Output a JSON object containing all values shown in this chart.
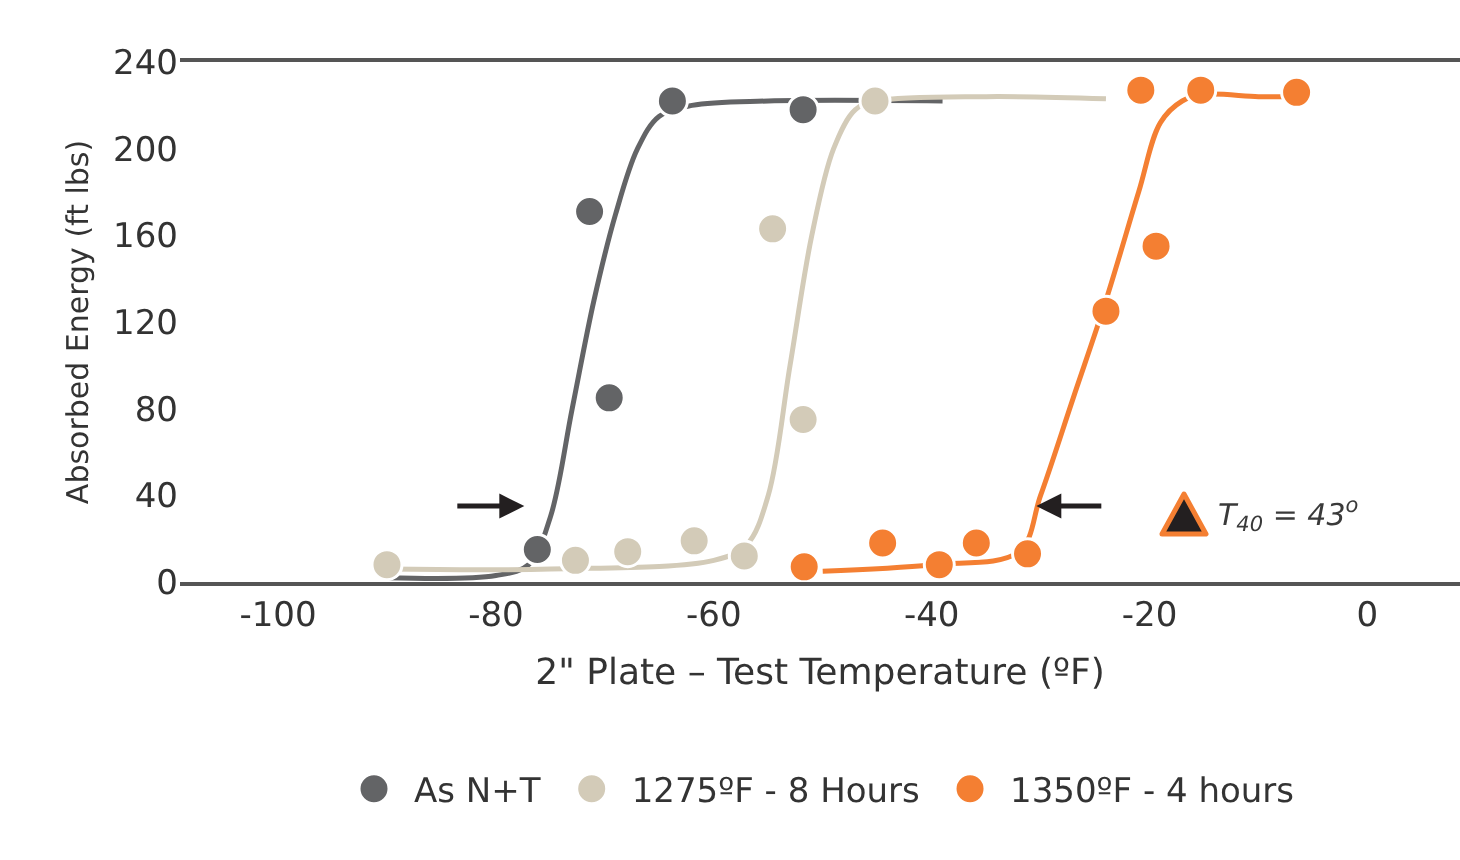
{
  "chart_data": {
    "type": "scatter",
    "xlabel": "2\" Plate – Test Temperature (ºF)",
    "ylabel": "Absorbed Energy (ft lbs)",
    "xlim": [
      -109,
      8.5
    ],
    "xticks": [
      -100,
      -80,
      -60,
      -40,
      -20,
      0
    ],
    "ylim": [
      0,
      240
    ],
    "yticks": [
      0,
      40,
      80,
      120,
      160,
      200,
      240
    ],
    "grid": false,
    "legend": "bottom",
    "marker": "circle",
    "series": [
      {
        "name": "As N+T",
        "color": "#636466",
        "x": [
          -76.2,
          -71.4,
          -69.6,
          -63.8,
          -51.8
        ],
        "values": [
          15,
          171,
          85,
          222,
          218
        ]
      },
      {
        "name": "1275ºF - 8 Hours",
        "color": "#d3cbb8",
        "x": [
          -90,
          -72.7,
          -67.9,
          -61.8,
          -57.2,
          -54.6,
          -51.8,
          -45.2
        ],
        "values": [
          8,
          10,
          14,
          19,
          12,
          163,
          75,
          222
        ]
      },
      {
        "name": "1350ºF - 4 hours",
        "color": "#f47f32",
        "x": [
          -51.7,
          -44.5,
          -39.3,
          -35.9,
          -31.2,
          -24,
          -19.4,
          -20.8,
          -15.3,
          -6.5
        ],
        "values": [
          7,
          18,
          8,
          18,
          13,
          125,
          155,
          227,
          227,
          226
        ]
      },
      {
        "type": "line",
        "marker": "none",
        "color": "#636466",
        "x": [
          -90,
          -80,
          -77,
          -75,
          -73,
          -71,
          -69,
          -67,
          -65,
          -62,
          -55,
          -39
        ],
        "values": [
          2,
          3,
          8,
          30,
          80,
          130,
          170,
          200,
          215,
          220,
          222,
          222
        ]
      },
      {
        "type": "line",
        "marker": "none",
        "color": "#d3cbb8",
        "x": [
          -90,
          -75,
          -60,
          -57,
          -55,
          -53,
          -51,
          -49,
          -47,
          -45,
          -35,
          -24
        ],
        "values": [
          6,
          6,
          10,
          17,
          40,
          100,
          160,
          200,
          218,
          222,
          224,
          223
        ]
      },
      {
        "type": "line",
        "marker": "none",
        "color": "#f47f32",
        "x": [
          -50,
          -40,
          -32,
          -30,
          -27,
          -24,
          -21,
          -19,
          -17,
          -15,
          -10,
          -7
        ],
        "values": [
          5,
          8,
          14,
          40,
          85,
          130,
          180,
          212,
          222,
          225,
          224,
          224
        ]
      }
    ],
    "annotations": [
      "T$_{40}$ = 43$^{o}$"
    ]
  }
}
